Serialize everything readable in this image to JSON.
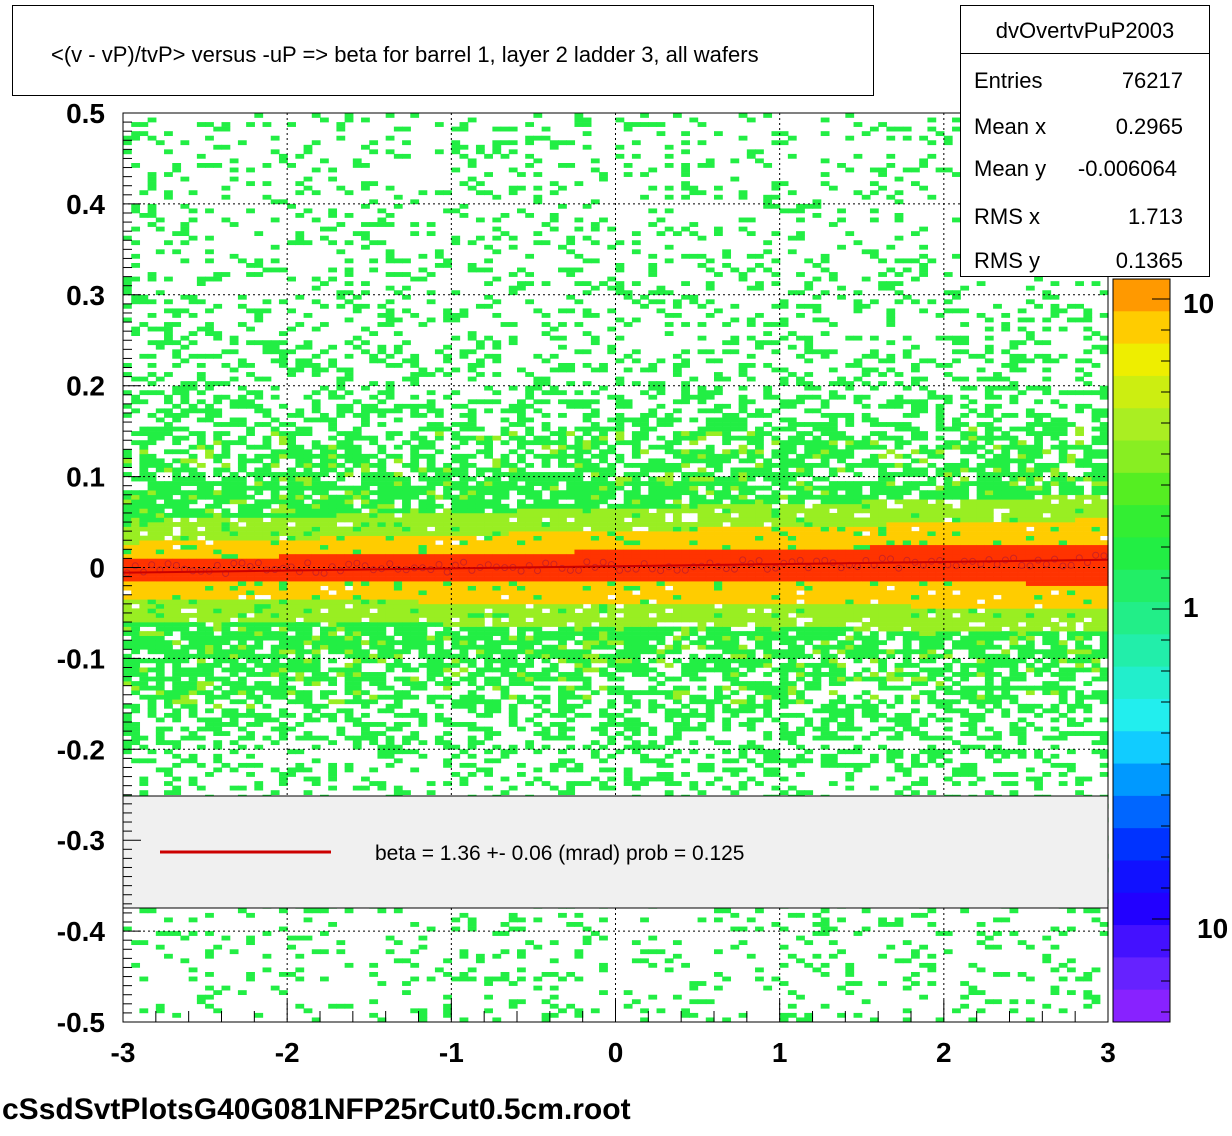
{
  "title": "<(v - vP)/tvP> versus  -uP => beta for barrel 1, layer 2 ladder 3, all wafers",
  "stats": {
    "name": "dvOvertvPuP2003",
    "rows": [
      {
        "label": "Entries",
        "value": "76217"
      },
      {
        "label": "Mean x",
        "value": "0.2965"
      },
      {
        "label": "Mean y",
        "value": "-0.006064"
      },
      {
        "label": "RMS x",
        "value": "1.713"
      },
      {
        "label": "RMS y",
        "value": "0.1365"
      }
    ]
  },
  "legend": {
    "text": "beta =    1.36 +-  0.06 (mrad) prob = 0.125",
    "line_color": "#cc0000"
  },
  "footer": "cSsdSvtPlotsG40G081NFP25rCut0.5cm.root",
  "colors": {
    "sparse": "#22ee44",
    "mid": "#99ee22",
    "high": "#ffcc00",
    "peak": "#ff3300",
    "profile_marker": "#cc2222",
    "legend_fill": "#f0f0f0"
  },
  "colorbar": {
    "colors": [
      "#ff9900",
      "#ffcc00",
      "#eeee00",
      "#ccee11",
      "#aaee22",
      "#88ee22",
      "#55ee22",
      "#33ee33",
      "#22ee44",
      "#22ee66",
      "#22ee88",
      "#22eeaa",
      "#22eecc",
      "#22eeee",
      "#11ccff",
      "#0099ff",
      "#0066ff",
      "#0033ff",
      "#1111ff",
      "#2200ff",
      "#4411ff",
      "#6622ff",
      "#8822ff"
    ],
    "labels": [
      "10",
      "1",
      "10"
    ]
  },
  "chart_data": {
    "type": "heatmap",
    "title": "<(v - vP)/tvP> versus  -uP => beta for barrel 1, layer 2 ladder 3, all wafers",
    "xlabel": "",
    "ylabel": "",
    "xlim": [
      -3,
      3
    ],
    "ylim": [
      -0.5,
      0.5
    ],
    "x_ticks": [
      "-3",
      "-2",
      "-1",
      "0",
      "1",
      "2",
      "3"
    ],
    "y_ticks": [
      "0.5",
      "0.4",
      "0.3",
      "0.2",
      "0.1",
      "0",
      "-0.1",
      "-0.2",
      "-0.3",
      "-0.4",
      "-0.5"
    ],
    "grid": true,
    "profile": {
      "x": [
        -3.0,
        -2.5,
        -2.0,
        -1.5,
        -1.0,
        -0.5,
        0.0,
        0.5,
        1.0,
        1.5,
        2.0,
        2.5,
        3.0
      ],
      "y": [
        -0.002,
        -0.001,
        0.0,
        -0.001,
        0.0,
        0.0,
        0.001,
        0.002,
        0.003,
        0.004,
        0.006,
        0.007,
        0.008
      ]
    },
    "fit": {
      "slope": 0.00136,
      "intercept": 0.004
    },
    "core_width": [
      0.008,
      0.015
    ]
  }
}
